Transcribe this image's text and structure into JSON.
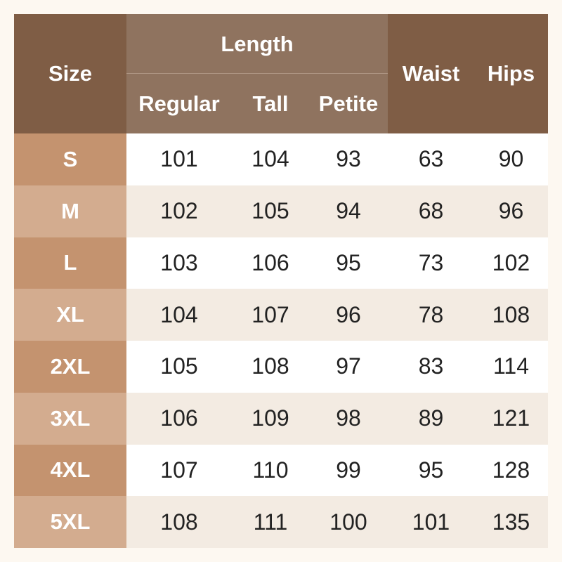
{
  "table": {
    "header": {
      "size": "Size",
      "length": "Length",
      "length_columns": [
        "Regular",
        "Tall",
        "Petite"
      ],
      "waist": "Waist",
      "hips": "Hips"
    },
    "rows": [
      [
        "S",
        101,
        104,
        93,
        63,
        90
      ],
      [
        "M",
        102,
        105,
        94,
        68,
        96
      ],
      [
        "L",
        103,
        106,
        95,
        73,
        102
      ],
      [
        "XL",
        104,
        107,
        96,
        78,
        108
      ],
      [
        "2XL",
        105,
        108,
        97,
        83,
        114
      ],
      [
        "3XL",
        106,
        109,
        98,
        89,
        121
      ],
      [
        "4XL",
        107,
        110,
        99,
        95,
        128
      ],
      [
        "5XL",
        108,
        111,
        100,
        101,
        135
      ]
    ]
  }
}
